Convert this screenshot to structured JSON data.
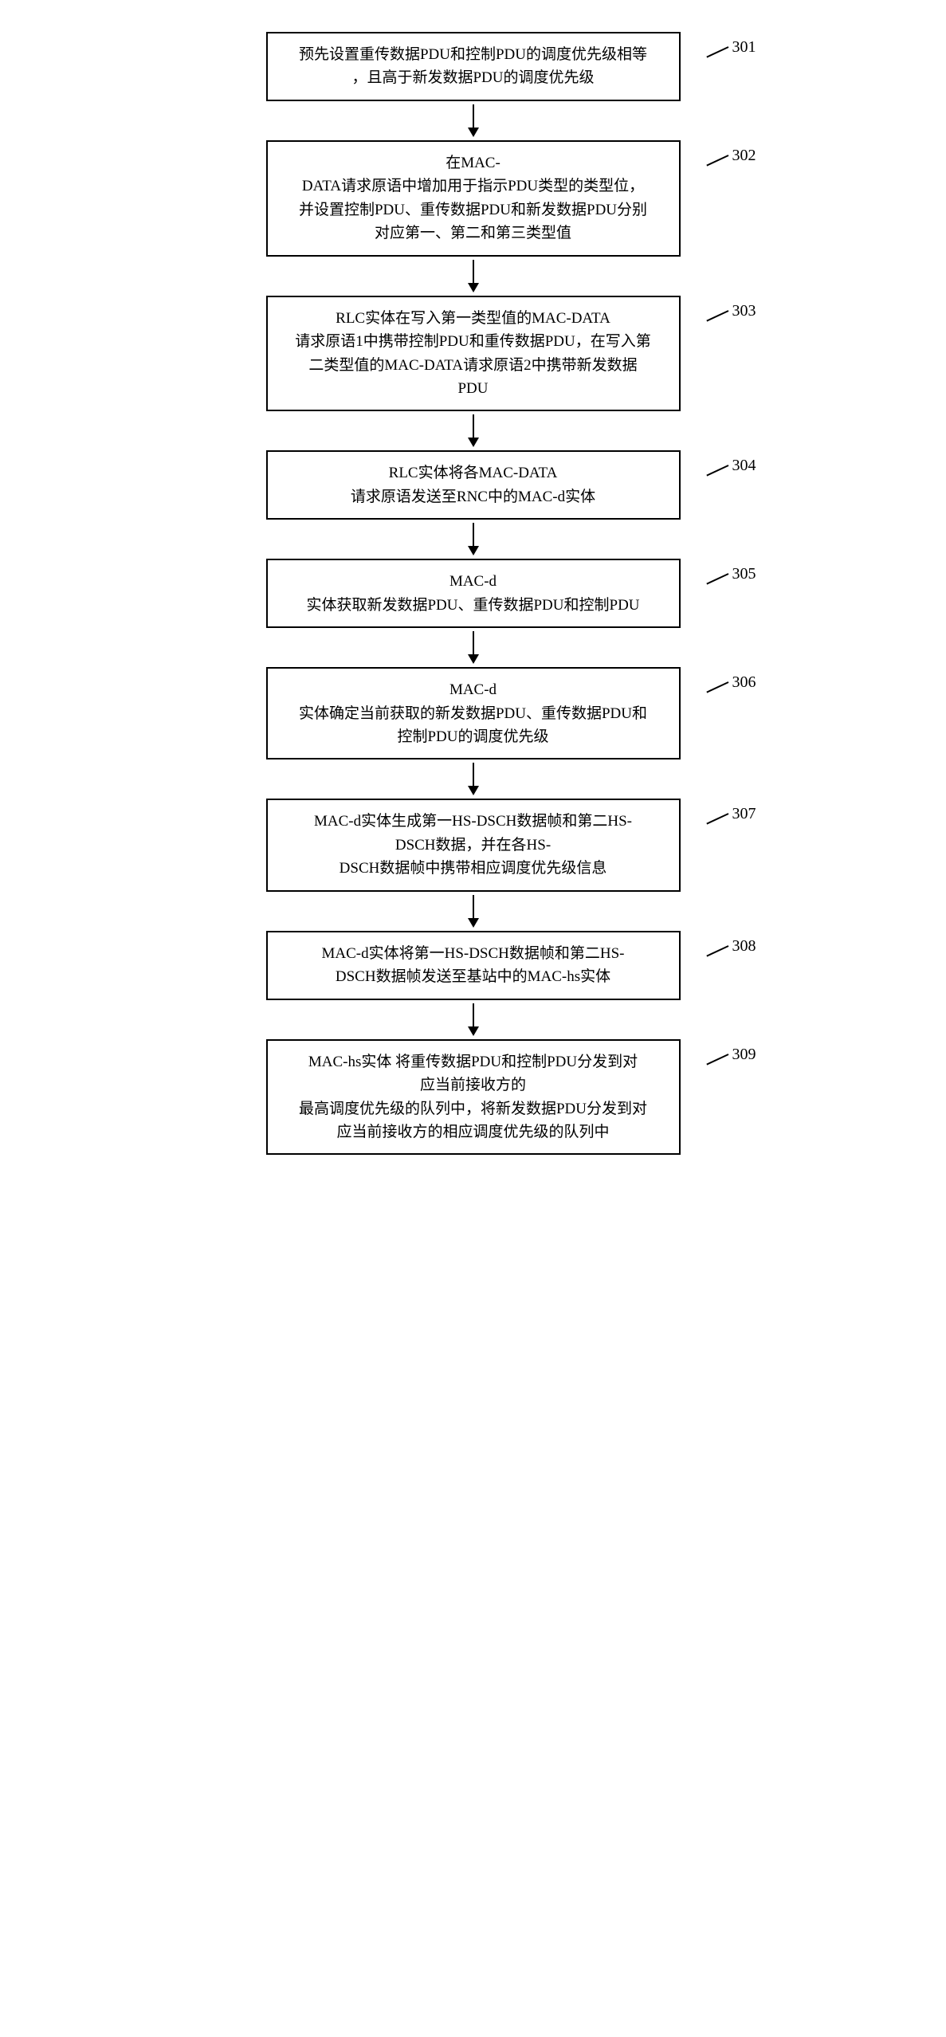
{
  "flowchart": {
    "type": "flowchart",
    "box_border_color": "#000000",
    "box_bg_color": "#ffffff",
    "box_border_width": 2,
    "arrow_color": "#000000",
    "font_size": 19,
    "label_font_size": 20,
    "steps": [
      {
        "id": "301",
        "text": "预先设置重传数据PDU和控制PDU的调度优先级相等\n，且高于新发数据PDU的调度优先级"
      },
      {
        "id": "302",
        "text": "在MAC-\nDATA请求原语中增加用于指示PDU类型的类型位，\n并设置控制PDU、重传数据PDU和新发数据PDU分别\n对应第一、第二和第三类型值"
      },
      {
        "id": "303",
        "text": "RLC实体在写入第一类型值的MAC-DATA\n请求原语1中携带控制PDU和重传数据PDU，在写入第\n二类型值的MAC-DATA请求原语2中携带新发数据\nPDU"
      },
      {
        "id": "304",
        "text": "RLC实体将各MAC-DATA\n请求原语发送至RNC中的MAC-d实体"
      },
      {
        "id": "305",
        "text": "MAC-d\n实体获取新发数据PDU、重传数据PDU和控制PDU"
      },
      {
        "id": "306",
        "text": "MAC-d\n实体确定当前获取的新发数据PDU、重传数据PDU和\n控制PDU的调度优先级"
      },
      {
        "id": "307",
        "text": "MAC-d实体生成第一HS-DSCH数据帧和第二HS-\nDSCH数据，并在各HS-\nDSCH数据帧中携带相应调度优先级信息"
      },
      {
        "id": "308",
        "text": "MAC-d实体将第一HS-DSCH数据帧和第二HS-\nDSCH数据帧发送至基站中的MAC-hs实体"
      },
      {
        "id": "309",
        "text": "MAC-hs实体 将重传数据PDU和控制PDU分发到对\n应当前接收方的\n最高调度优先级的队列中，将新发数据PDU分发到对\n应当前接收方的相应调度优先级的队列中"
      }
    ]
  }
}
